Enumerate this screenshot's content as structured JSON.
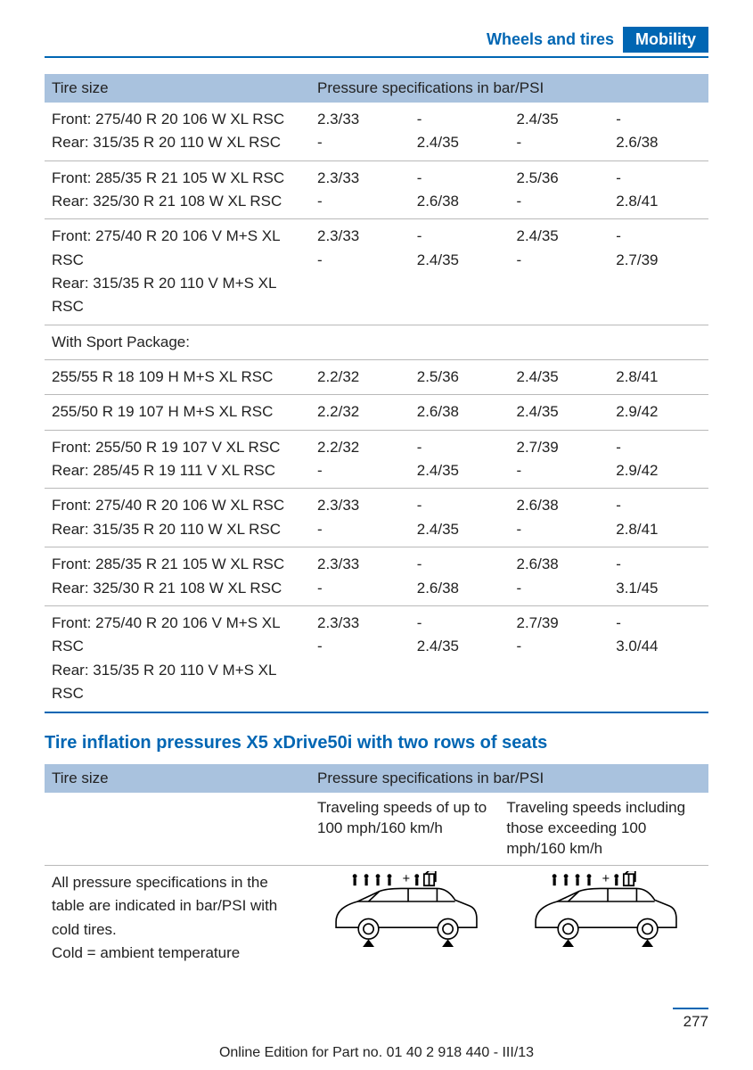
{
  "header": {
    "section": "Wheels and tires",
    "chapter": "Mobility"
  },
  "table1": {
    "col_size": "Tire size",
    "col_pressure": "Pressure specifications in bar/PSI",
    "rows": [
      {
        "size": "Front: 275/40 R 20 106 W XL RSC\nRear: 315/35 R 20 110 W XL RSC",
        "p1": "2.3/33\n-",
        "p2": "-\n2.4/35",
        "p3": "2.4/35\n-",
        "p4": "-\n2.6/38",
        "sep": true
      },
      {
        "size": "Front: 285/35 R 21 105 W XL RSC\nRear: 325/30 R 21 108 W XL RSC",
        "p1": "2.3/33\n-",
        "p2": "-\n2.6/38",
        "p3": "2.5/36\n-",
        "p4": "-\n2.8/41",
        "sep": true
      },
      {
        "size": "Front: 275/40 R 20 106 V M+S XL RSC\nRear: 315/35 R 20 110 V M+S XL RSC",
        "p1": "2.3/33\n-",
        "p2": "-\n2.4/35",
        "p3": "2.4/35\n-",
        "p4": "-\n2.7/39",
        "sep": true
      },
      {
        "size": "With Sport Package:",
        "p1": "",
        "p2": "",
        "p3": "",
        "p4": "",
        "sep": true
      },
      {
        "size": "255/55 R 18 109 H M+S XL RSC",
        "p1": "2.2/32",
        "p2": "2.5/36",
        "p3": "2.4/35",
        "p4": "2.8/41",
        "sep": true
      },
      {
        "size": "255/50 R 19 107 H M+S XL RSC",
        "p1": "2.2/32",
        "p2": "2.6/38",
        "p3": "2.4/35",
        "p4": "2.9/42",
        "sep": true
      },
      {
        "size": "Front: 255/50 R 19 107 V XL RSC\nRear: 285/45 R 19 111 V XL RSC",
        "p1": "2.2/32\n-",
        "p2": "-\n2.4/35",
        "p3": "2.7/39\n-",
        "p4": "-\n2.9/42",
        "sep": true
      },
      {
        "size": "Front: 275/40 R 20 106 W XL RSC\nRear: 315/35 R 20 110 W XL RSC",
        "p1": "2.3/33\n-",
        "p2": "-\n2.4/35",
        "p3": "2.6/38\n-",
        "p4": "-\n2.8/41",
        "sep": true
      },
      {
        "size": "Front: 285/35 R 21 105 W XL RSC\nRear: 325/30 R 21 108 W XL RSC",
        "p1": "2.3/33\n-",
        "p2": "-\n2.6/38",
        "p3": "2.6/38\n-",
        "p4": "-\n3.1/45",
        "sep": true
      },
      {
        "size": "Front: 275/40 R 20 106 V M+S XL RSC\nRear: 315/35 R 20 110 V M+S XL RSC",
        "p1": "2.3/33\n-",
        "p2": "-\n2.4/35",
        "p3": "2.7/39\n-",
        "p4": "-\n3.0/44",
        "sep": false
      }
    ]
  },
  "section_title": "Tire inflation pressures X5 xDrive50i with two rows of seats",
  "table2": {
    "col_size": "Tire size",
    "col_pressure": "Pressure specifications in bar/PSI",
    "speed_low": "Traveling speeds of up to 100 mph/160 km/h",
    "speed_high": "Traveling speeds including those exceeding 100 mph/160 km/h",
    "note": "All pressure specifications in the table are indicated in bar/PSI with cold tires.\nCold = ambient temperature"
  },
  "page_number": "277",
  "footer": "Online Edition for Part no. 01 40 2 918 440 - III/13"
}
